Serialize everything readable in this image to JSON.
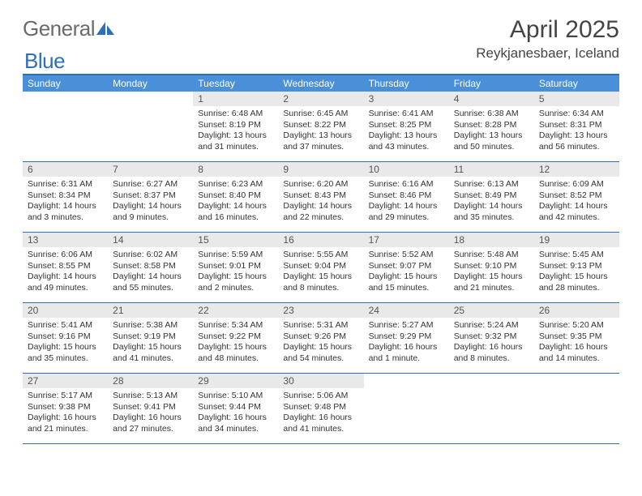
{
  "brand": {
    "name_part1": "General",
    "name_part2": "Blue"
  },
  "colors": {
    "accent": "#4a90d9",
    "accent_dark": "#2d6fb8",
    "logo_gray": "#6b6b6b",
    "logo_blue": "#2d6fb8",
    "daynum_bg": "#e9e9e9",
    "text": "#333333",
    "background": "#ffffff"
  },
  "title": "April 2025",
  "location": "Reykjanesbaer, Iceland",
  "day_names": [
    "Sunday",
    "Monday",
    "Tuesday",
    "Wednesday",
    "Thursday",
    "Friday",
    "Saturday"
  ],
  "grid_columns": 7,
  "weeks": [
    [
      null,
      null,
      {
        "n": "1",
        "sr": "Sunrise: 6:48 AM",
        "ss": "Sunset: 8:19 PM",
        "d1": "Daylight: 13 hours",
        "d2": "and 31 minutes."
      },
      {
        "n": "2",
        "sr": "Sunrise: 6:45 AM",
        "ss": "Sunset: 8:22 PM",
        "d1": "Daylight: 13 hours",
        "d2": "and 37 minutes."
      },
      {
        "n": "3",
        "sr": "Sunrise: 6:41 AM",
        "ss": "Sunset: 8:25 PM",
        "d1": "Daylight: 13 hours",
        "d2": "and 43 minutes."
      },
      {
        "n": "4",
        "sr": "Sunrise: 6:38 AM",
        "ss": "Sunset: 8:28 PM",
        "d1": "Daylight: 13 hours",
        "d2": "and 50 minutes."
      },
      {
        "n": "5",
        "sr": "Sunrise: 6:34 AM",
        "ss": "Sunset: 8:31 PM",
        "d1": "Daylight: 13 hours",
        "d2": "and 56 minutes."
      }
    ],
    [
      {
        "n": "6",
        "sr": "Sunrise: 6:31 AM",
        "ss": "Sunset: 8:34 PM",
        "d1": "Daylight: 14 hours",
        "d2": "and 3 minutes."
      },
      {
        "n": "7",
        "sr": "Sunrise: 6:27 AM",
        "ss": "Sunset: 8:37 PM",
        "d1": "Daylight: 14 hours",
        "d2": "and 9 minutes."
      },
      {
        "n": "8",
        "sr": "Sunrise: 6:23 AM",
        "ss": "Sunset: 8:40 PM",
        "d1": "Daylight: 14 hours",
        "d2": "and 16 minutes."
      },
      {
        "n": "9",
        "sr": "Sunrise: 6:20 AM",
        "ss": "Sunset: 8:43 PM",
        "d1": "Daylight: 14 hours",
        "d2": "and 22 minutes."
      },
      {
        "n": "10",
        "sr": "Sunrise: 6:16 AM",
        "ss": "Sunset: 8:46 PM",
        "d1": "Daylight: 14 hours",
        "d2": "and 29 minutes."
      },
      {
        "n": "11",
        "sr": "Sunrise: 6:13 AM",
        "ss": "Sunset: 8:49 PM",
        "d1": "Daylight: 14 hours",
        "d2": "and 35 minutes."
      },
      {
        "n": "12",
        "sr": "Sunrise: 6:09 AM",
        "ss": "Sunset: 8:52 PM",
        "d1": "Daylight: 14 hours",
        "d2": "and 42 minutes."
      }
    ],
    [
      {
        "n": "13",
        "sr": "Sunrise: 6:06 AM",
        "ss": "Sunset: 8:55 PM",
        "d1": "Daylight: 14 hours",
        "d2": "and 49 minutes."
      },
      {
        "n": "14",
        "sr": "Sunrise: 6:02 AM",
        "ss": "Sunset: 8:58 PM",
        "d1": "Daylight: 14 hours",
        "d2": "and 55 minutes."
      },
      {
        "n": "15",
        "sr": "Sunrise: 5:59 AM",
        "ss": "Sunset: 9:01 PM",
        "d1": "Daylight: 15 hours",
        "d2": "and 2 minutes."
      },
      {
        "n": "16",
        "sr": "Sunrise: 5:55 AM",
        "ss": "Sunset: 9:04 PM",
        "d1": "Daylight: 15 hours",
        "d2": "and 8 minutes."
      },
      {
        "n": "17",
        "sr": "Sunrise: 5:52 AM",
        "ss": "Sunset: 9:07 PM",
        "d1": "Daylight: 15 hours",
        "d2": "and 15 minutes."
      },
      {
        "n": "18",
        "sr": "Sunrise: 5:48 AM",
        "ss": "Sunset: 9:10 PM",
        "d1": "Daylight: 15 hours",
        "d2": "and 21 minutes."
      },
      {
        "n": "19",
        "sr": "Sunrise: 5:45 AM",
        "ss": "Sunset: 9:13 PM",
        "d1": "Daylight: 15 hours",
        "d2": "and 28 minutes."
      }
    ],
    [
      {
        "n": "20",
        "sr": "Sunrise: 5:41 AM",
        "ss": "Sunset: 9:16 PM",
        "d1": "Daylight: 15 hours",
        "d2": "and 35 minutes."
      },
      {
        "n": "21",
        "sr": "Sunrise: 5:38 AM",
        "ss": "Sunset: 9:19 PM",
        "d1": "Daylight: 15 hours",
        "d2": "and 41 minutes."
      },
      {
        "n": "22",
        "sr": "Sunrise: 5:34 AM",
        "ss": "Sunset: 9:22 PM",
        "d1": "Daylight: 15 hours",
        "d2": "and 48 minutes."
      },
      {
        "n": "23",
        "sr": "Sunrise: 5:31 AM",
        "ss": "Sunset: 9:26 PM",
        "d1": "Daylight: 15 hours",
        "d2": "and 54 minutes."
      },
      {
        "n": "24",
        "sr": "Sunrise: 5:27 AM",
        "ss": "Sunset: 9:29 PM",
        "d1": "Daylight: 16 hours",
        "d2": "and 1 minute."
      },
      {
        "n": "25",
        "sr": "Sunrise: 5:24 AM",
        "ss": "Sunset: 9:32 PM",
        "d1": "Daylight: 16 hours",
        "d2": "and 8 minutes."
      },
      {
        "n": "26",
        "sr": "Sunrise: 5:20 AM",
        "ss": "Sunset: 9:35 PM",
        "d1": "Daylight: 16 hours",
        "d2": "and 14 minutes."
      }
    ],
    [
      {
        "n": "27",
        "sr": "Sunrise: 5:17 AM",
        "ss": "Sunset: 9:38 PM",
        "d1": "Daylight: 16 hours",
        "d2": "and 21 minutes."
      },
      {
        "n": "28",
        "sr": "Sunrise: 5:13 AM",
        "ss": "Sunset: 9:41 PM",
        "d1": "Daylight: 16 hours",
        "d2": "and 27 minutes."
      },
      {
        "n": "29",
        "sr": "Sunrise: 5:10 AM",
        "ss": "Sunset: 9:44 PM",
        "d1": "Daylight: 16 hours",
        "d2": "and 34 minutes."
      },
      {
        "n": "30",
        "sr": "Sunrise: 5:06 AM",
        "ss": "Sunset: 9:48 PM",
        "d1": "Daylight: 16 hours",
        "d2": "and 41 minutes."
      },
      null,
      null,
      null
    ]
  ]
}
